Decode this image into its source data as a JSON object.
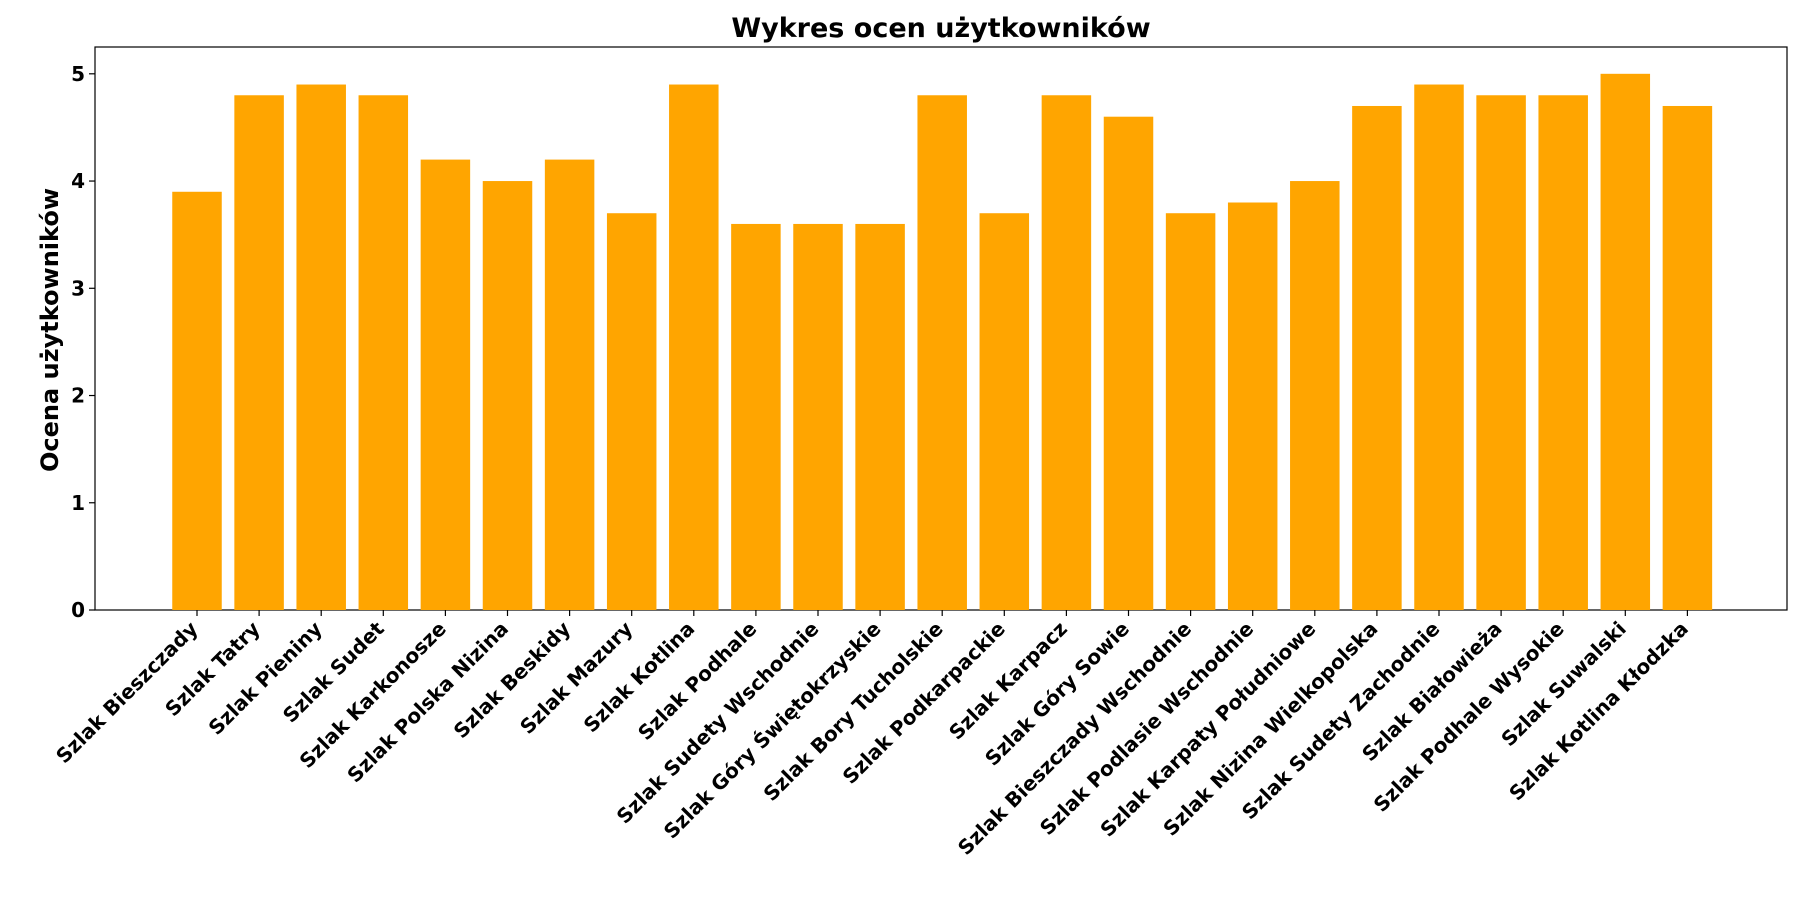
{
  "chart_data": {
    "type": "bar",
    "title": "Wykres ocen użytkowników",
    "xlabel": "",
    "ylabel": "Ocena użytkowników",
    "ylim": [
      0,
      5.25
    ],
    "yticks": [
      0,
      1,
      2,
      3,
      4,
      5
    ],
    "bar_color": "#FFA500",
    "grid": false,
    "categories": [
      "Szlak Bieszczady",
      "Szlak Tatry",
      "Szlak Pieniny",
      "Szlak Sudet",
      "Szlak Karkonosze",
      "Szlak Polska Nizina",
      "Szlak Beskidy",
      "Szlak Mazury",
      "Szlak Kotlina",
      "Szlak Podhale",
      "Szlak Sudety Wschodnie",
      "Szlak Góry Świętokrzyskie",
      "Szlak Bory Tucholskie",
      "Szlak Podkarpackie",
      "Szlak Karpacz",
      "Szlak Góry Sowie",
      "Szlak Bieszczady Wschodnie",
      "Szlak Podlasie Wschodnie",
      "Szlak Karpaty Południowe",
      "Szlak Nizina Wielkopolska",
      "Szlak Sudety Zachodnie",
      "Szlak Białowieża",
      "Szlak Podhale Wysokie",
      "Szlak Suwalski",
      "Szlak Kotlina Kłodzka"
    ],
    "values": [
      3.9,
      4.8,
      4.9,
      4.8,
      4.2,
      4.0,
      4.2,
      3.7,
      4.9,
      3.6,
      3.6,
      3.6,
      4.8,
      3.7,
      4.8,
      4.6,
      3.7,
      3.8,
      4.0,
      4.7,
      4.9,
      4.8,
      4.8,
      5.0,
      4.7
    ]
  }
}
